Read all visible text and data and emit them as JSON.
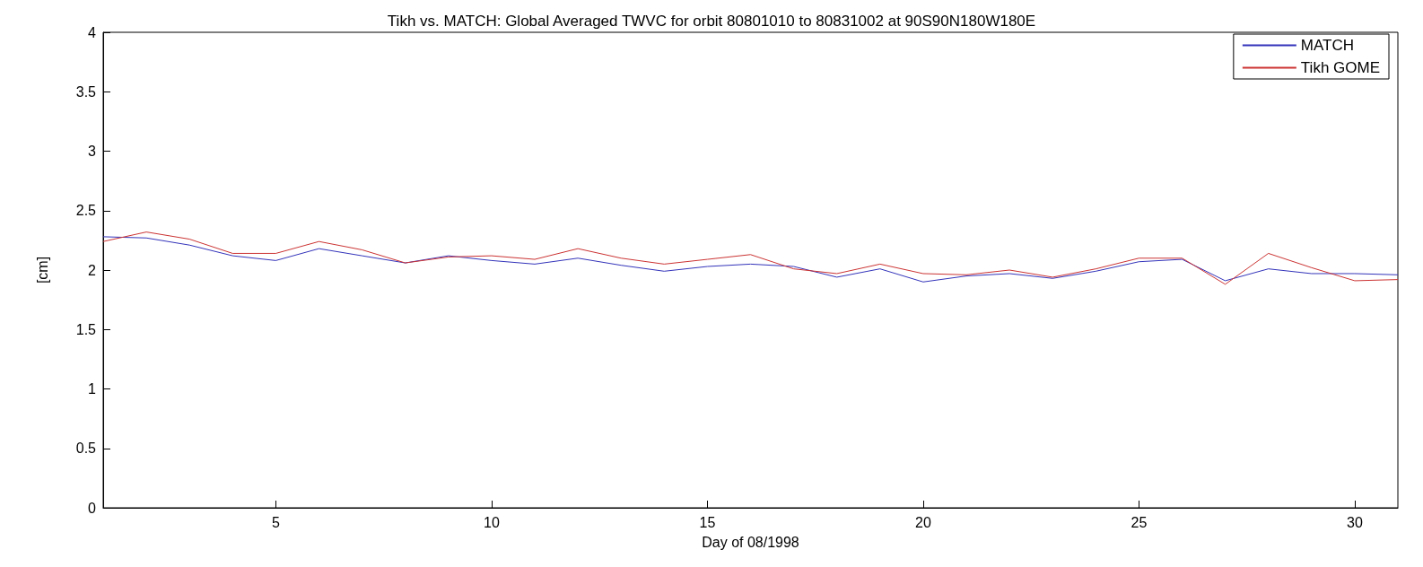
{
  "chart_data": {
    "type": "line",
    "title": "Tikh vs. MATCH: Global Averaged TWVC for orbit 80801010 to 80831002 at 90S90N180W180E",
    "xlabel": "Day of 08/1998",
    "ylabel": "[cm]",
    "x": [
      1,
      2,
      3,
      4,
      5,
      6,
      7,
      8,
      9,
      10,
      11,
      12,
      13,
      14,
      15,
      16,
      17,
      18,
      19,
      20,
      21,
      22,
      23,
      24,
      25,
      26,
      27,
      28,
      29,
      30,
      31
    ],
    "series": [
      {
        "name": "MATCH",
        "color": "#3333bb",
        "values": [
          2.28,
          2.27,
          2.21,
          2.12,
          2.08,
          2.18,
          2.12,
          2.06,
          2.12,
          2.08,
          2.05,
          2.1,
          2.04,
          1.99,
          2.03,
          2.05,
          2.03,
          1.94,
          2.01,
          1.9,
          1.95,
          1.97,
          1.93,
          1.99,
          2.07,
          2.09,
          1.91,
          2.01,
          1.97,
          1.97,
          1.96
        ]
      },
      {
        "name": "Tikh GOME",
        "color": "#cc3333",
        "values": [
          2.24,
          2.32,
          2.26,
          2.14,
          2.14,
          2.24,
          2.17,
          2.06,
          2.11,
          2.12,
          2.09,
          2.18,
          2.1,
          2.05,
          2.09,
          2.13,
          2.01,
          1.97,
          2.05,
          1.97,
          1.96,
          2.0,
          1.94,
          2.01,
          2.1,
          2.1,
          1.88,
          2.14,
          2.02,
          1.91,
          1.92
        ]
      }
    ],
    "xlim": [
      1,
      31
    ],
    "xticks": [
      5,
      10,
      15,
      20,
      25,
      30
    ],
    "ylim": [
      0,
      4
    ],
    "yticks": [
      0,
      0.5,
      1,
      1.5,
      2,
      2.5,
      3,
      3.5,
      4
    ],
    "grid": false,
    "legend": "top right",
    "marker": "none",
    "line_style": "solid"
  }
}
